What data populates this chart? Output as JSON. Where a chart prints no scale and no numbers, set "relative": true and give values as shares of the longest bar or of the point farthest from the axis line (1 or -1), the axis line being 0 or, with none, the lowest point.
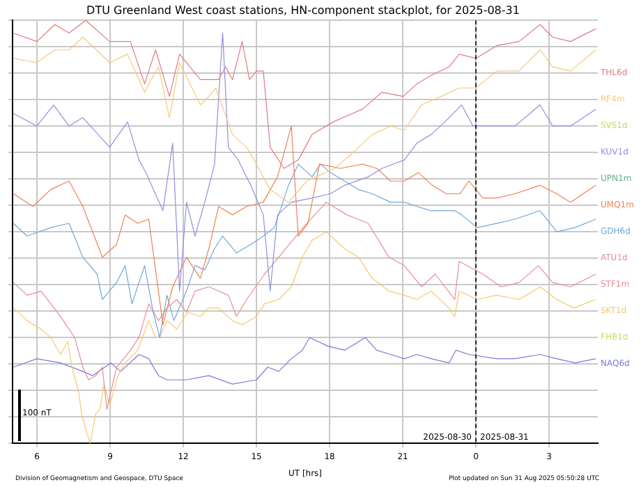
{
  "chart_data": {
    "type": "line",
    "title": "DTU Greenland West coast stations, HN-component stackplot, for 2025-08-31",
    "xlabel": "UT [hrs]",
    "relative": true,
    "grid": true,
    "legend": "right",
    "marker": "none",
    "line_style": "solid",
    "xlim": [
      "2025-08-30T05:00",
      "2025-08-31T05:00"
    ],
    "xticks": [
      {
        "value": "2025-08-30T06:00",
        "label": "6"
      },
      {
        "value": "2025-08-30T09:00",
        "label": "9"
      },
      {
        "value": "2025-08-30T12:00",
        "label": "12"
      },
      {
        "value": "2025-08-30T15:00",
        "label": "15"
      },
      {
        "value": "2025-08-30T18:00",
        "label": "18"
      },
      {
        "value": "2025-08-30T21:00",
        "label": "21"
      },
      {
        "value": "2025-08-31T00:00",
        "label": "0"
      },
      {
        "value": "2025-08-31T03:00",
        "label": "3"
      }
    ],
    "ref_lines": [
      {
        "axis": "x",
        "value": "2025-08-31T00:00",
        "color": "#000000",
        "line_style": "dashed"
      }
    ],
    "annotations": [
      "100 nT",
      "2025-08-30",
      "2025-08-31",
      "Division of Geomagnetism and Geospace, DTU Space",
      "Plot updated on Sun 31 Aug 2025 05:50:28 UTC"
    ],
    "series": [
      {
        "name": "THL6d",
        "color": "#e07a80",
        "x": [
          "2025-08-30T05:02",
          "2025-08-30T06:00",
          "2025-08-30T06:44",
          "2025-08-30T07:19",
          "2025-08-30T08:00",
          "2025-08-30T08:59",
          "2025-08-30T09:50",
          "2025-08-30T10:25",
          "2025-08-30T10:52",
          "2025-08-30T11:26",
          "2025-08-30T11:51",
          "2025-08-30T12:42",
          "2025-08-30T13:27",
          "2025-08-30T13:44",
          "2025-08-30T14:01",
          "2025-08-30T14:25",
          "2025-08-30T14:43",
          "2025-08-30T15:00",
          "2025-08-30T15:17",
          "2025-08-30T15:34",
          "2025-08-30T16:08",
          "2025-08-30T16:43",
          "2025-08-30T17:17",
          "2025-08-30T18:09",
          "2025-08-30T19:21",
          "2025-08-30T20:09",
          "2025-08-30T21:01",
          "2025-08-30T21:35",
          "2025-08-30T22:10",
          "2025-08-30T22:54",
          "2025-08-30T23:19",
          "2025-08-31T00:00",
          "2025-08-31T00:51",
          "2025-08-31T01:46",
          "2025-08-31T02:38",
          "2025-08-31T03:09",
          "2025-08-31T03:53",
          "2025-08-31T04:55"
        ],
        "values": [
          0.97,
          0.95,
          0.99,
          0.97,
          1,
          0.95,
          0.95,
          0.85,
          0.93,
          0.82,
          0.92,
          0.86,
          0.86,
          0.89,
          0.86,
          0.95,
          0.86,
          0.88,
          0.88,
          0.7,
          0.65,
          0.67,
          0.73,
          0.76,
          0.79,
          0.83,
          0.82,
          0.85,
          0.87,
          0.89,
          0.92,
          0.91,
          0.94,
          0.95,
          0.99,
          0.96,
          0.95,
          0.98
        ]
      },
      {
        "name": "RF4m",
        "color": "#f5c97a",
        "x": [
          "2025-08-30T05:02",
          "2025-08-30T06:00",
          "2025-08-30T06:44",
          "2025-08-30T07:19",
          "2025-08-30T07:53",
          "2025-08-30T08:59",
          "2025-08-30T09:43",
          "2025-08-30T10:25",
          "2025-08-30T10:59",
          "2025-08-30T11:26",
          "2025-08-30T11:51",
          "2025-08-30T12:42",
          "2025-08-30T13:03",
          "2025-08-30T13:20",
          "2025-08-30T14:01",
          "2025-08-30T14:36",
          "2025-08-30T15:00",
          "2025-08-30T15:34",
          "2025-08-30T16:19",
          "2025-08-30T17:04",
          "2025-08-30T18:13",
          "2025-08-30T19:01",
          "2025-08-30T19:45",
          "2025-08-30T20:30",
          "2025-08-30T21:04",
          "2025-08-30T21:46",
          "2025-08-30T22:34",
          "2025-08-30T23:19",
          "2025-08-31T00:00",
          "2025-08-31T00:51",
          "2025-08-31T01:46",
          "2025-08-31T02:38",
          "2025-08-31T03:09",
          "2025-08-31T03:53",
          "2025-08-31T04:55"
        ],
        "values": [
          0.91,
          0.9,
          0.93,
          0.93,
          0.96,
          0.9,
          0.92,
          0.83,
          0.89,
          0.77,
          0.9,
          0.8,
          0.82,
          0.84,
          0.73,
          0.7,
          0.66,
          0.6,
          0.57,
          0.62,
          0.65,
          0.69,
          0.73,
          0.75,
          0.74,
          0.8,
          0.82,
          0.84,
          0.84,
          0.88,
          0.88,
          0.93,
          0.89,
          0.88,
          0.93
        ]
      },
      {
        "name": "SVS1d",
        "color": "#c9d86b"
      },
      {
        "name": "KUV1d",
        "color": "#8f8fe0",
        "x": [
          "2025-08-30T05:02",
          "2025-08-30T06:00",
          "2025-08-30T06:41",
          "2025-08-30T07:19",
          "2025-08-30T07:53",
          "2025-08-30T08:59",
          "2025-08-30T09:43",
          "2025-08-30T10:11",
          "2025-08-30T10:28",
          "2025-08-30T11:10",
          "2025-08-30T11:34",
          "2025-08-30T11:51",
          "2025-08-30T12:08",
          "2025-08-30T12:29",
          "2025-08-30T12:53",
          "2025-08-30T13:17",
          "2025-08-30T13:37",
          "2025-08-30T13:51",
          "2025-08-30T14:15",
          "2025-08-30T14:46",
          "2025-08-30T15:17",
          "2025-08-30T15:34",
          "2025-08-30T15:52",
          "2025-08-30T16:26",
          "2025-08-30T17:17",
          "2025-08-30T18:02",
          "2025-08-30T18:37",
          "2025-08-30T19:35",
          "2025-08-30T20:09",
          "2025-08-30T21:04",
          "2025-08-30T21:35",
          "2025-08-30T22:10",
          "2025-08-30T22:44",
          "2025-08-30T23:25",
          "2025-08-30T23:53",
          "2025-08-31T00:51",
          "2025-08-31T01:36",
          "2025-08-31T02:38",
          "2025-08-31T03:09",
          "2025-08-31T03:53",
          "2025-08-31T04:55"
        ],
        "values": [
          0.78,
          0.75,
          0.8,
          0.75,
          0.77,
          0.7,
          0.76,
          0.67,
          0.64,
          0.55,
          0.71,
          0.36,
          0.57,
          0.49,
          0.57,
          0.66,
          0.97,
          0.7,
          0.67,
          0.61,
          0.54,
          0.36,
          0.54,
          0.57,
          0.58,
          0.59,
          0.61,
          0.63,
          0.65,
          0.67,
          0.71,
          0.73,
          0.76,
          0.8,
          0.75,
          0.75,
          0.75,
          0.8,
          0.75,
          0.75,
          0.79
        ]
      },
      {
        "name": "UPN1m",
        "color": "#5fb38a"
      },
      {
        "name": "UMQ1m",
        "color": "#f08050",
        "x": [
          "2025-08-30T05:02",
          "2025-08-30T05:50",
          "2025-08-30T06:34",
          "2025-08-30T07:19",
          "2025-08-30T07:53",
          "2025-08-30T08:17",
          "2025-08-30T08:41",
          "2025-08-30T09:16",
          "2025-08-30T09:37",
          "2025-08-30T10:08",
          "2025-08-30T10:35",
          "2025-08-30T10:59",
          "2025-08-30T11:10",
          "2025-08-30T11:34",
          "2025-08-30T12:08",
          "2025-08-30T12:42",
          "2025-08-30T13:03",
          "2025-08-30T13:27",
          "2025-08-30T14:01",
          "2025-08-30T14:36",
          "2025-08-30T15:17",
          "2025-08-30T15:52",
          "2025-08-30T16:26",
          "2025-08-30T16:43",
          "2025-08-30T17:07",
          "2025-08-30T17:35",
          "2025-08-30T18:26",
          "2025-08-30T19:21",
          "2025-08-30T19:56",
          "2025-08-30T20:30",
          "2025-08-30T21:04",
          "2025-08-30T21:39",
          "2025-08-30T22:13",
          "2025-08-30T22:47",
          "2025-08-30T23:21",
          "2025-08-30T23:43",
          "2025-08-31T00:17",
          "2025-08-31T00:51",
          "2025-08-31T01:36",
          "2025-08-31T02:38",
          "2025-08-31T03:19",
          "2025-08-31T03:53",
          "2025-08-31T04:55"
        ],
        "values": [
          0.59,
          0.56,
          0.6,
          0.62,
          0.56,
          0.5,
          0.44,
          0.47,
          0.54,
          0.52,
          0.53,
          0.36,
          0.28,
          0.37,
          0.44,
          0.39,
          0.46,
          0.56,
          0.54,
          0.56,
          0.57,
          0.63,
          0.75,
          0.49,
          0.52,
          0.66,
          0.65,
          0.66,
          0.65,
          0.62,
          0.62,
          0.64,
          0.61,
          0.59,
          0.59,
          0.62,
          0.58,
          0.58,
          0.59,
          0.61,
          0.59,
          0.57,
          0.61
        ]
      },
      {
        "name": "GDH6d",
        "color": "#6fa8d8",
        "x": [
          "2025-08-30T05:02",
          "2025-08-30T05:36",
          "2025-08-30T06:34",
          "2025-08-30T07:19",
          "2025-08-30T07:53",
          "2025-08-30T08:28",
          "2025-08-30T08:41",
          "2025-08-30T09:16",
          "2025-08-30T09:37",
          "2025-08-30T09:54",
          "2025-08-30T10:25",
          "2025-08-30T10:46",
          "2025-08-30T11:02",
          "2025-08-30T11:20",
          "2025-08-30T11:37",
          "2025-08-30T12:08",
          "2025-08-30T12:29",
          "2025-08-30T12:53",
          "2025-08-30T13:17",
          "2025-08-30T13:37",
          "2025-08-30T14:11",
          "2025-08-30T14:46",
          "2025-08-30T15:17",
          "2025-08-30T15:44",
          "2025-08-30T16:19",
          "2025-08-30T16:43",
          "2025-08-30T17:17",
          "2025-08-30T17:38",
          "2025-08-30T18:02",
          "2025-08-30T18:37",
          "2025-08-30T19:11",
          "2025-08-30T19:45",
          "2025-08-30T20:30",
          "2025-08-30T21:04",
          "2025-08-30T21:35",
          "2025-08-30T22:10",
          "2025-08-30T23:08",
          "2025-08-30T23:25",
          "2025-08-31T00:03",
          "2025-08-31T00:51",
          "2025-08-31T01:36",
          "2025-08-31T02:38",
          "2025-08-31T03:19",
          "2025-08-31T04:04",
          "2025-08-31T04:55"
        ],
        "values": [
          0.52,
          0.49,
          0.51,
          0.52,
          0.44,
          0.4,
          0.34,
          0.38,
          0.42,
          0.33,
          0.42,
          0.31,
          0.25,
          0.35,
          0.29,
          0.36,
          0.42,
          0.41,
          0.46,
          0.49,
          0.45,
          0.47,
          0.49,
          0.51,
          0.61,
          0.66,
          0.63,
          0.66,
          0.64,
          0.62,
          0.6,
          0.59,
          0.57,
          0.57,
          0.56,
          0.55,
          0.55,
          0.54,
          0.51,
          0.52,
          0.53,
          0.55,
          0.5,
          0.51,
          0.53
        ]
      },
      {
        "name": "ATU1d",
        "color": "#e0909a"
      },
      {
        "name": "STF1m",
        "color": "#e88c98",
        "x": [
          "2025-08-30T05:02",
          "2025-08-30T05:36",
          "2025-08-30T06:10",
          "2025-08-30T06:58",
          "2025-08-30T07:33",
          "2025-08-30T07:53",
          "2025-08-30T08:07",
          "2025-08-30T08:25",
          "2025-08-30T08:41",
          "2025-08-30T08:52",
          "2025-08-30T09:16",
          "2025-08-30T09:50",
          "2025-08-30T10:11",
          "2025-08-30T10:35",
          "2025-08-30T10:59",
          "2025-08-30T11:20",
          "2025-08-30T11:44",
          "2025-08-30T12:08",
          "2025-08-30T12:29",
          "2025-08-30T13:03",
          "2025-08-30T13:51",
          "2025-08-30T14:11",
          "2025-08-30T14:36",
          "2025-08-30T15:20",
          "2025-08-30T15:55",
          "2025-08-30T16:29",
          "2025-08-30T17:04",
          "2025-08-30T17:52",
          "2025-08-30T18:43",
          "2025-08-30T19:35",
          "2025-08-30T20:26",
          "2025-08-30T21:04",
          "2025-08-30T21:46",
          "2025-08-30T22:20",
          "2025-08-30T23:08",
          "2025-08-30T23:19",
          "2025-08-31T00:17",
          "2025-08-31T01:02",
          "2025-08-31T01:46",
          "2025-08-31T02:34",
          "2025-08-31T03:09",
          "2025-08-31T03:53",
          "2025-08-31T04:55"
        ],
        "values": [
          0.38,
          0.35,
          0.36,
          0.3,
          0.25,
          0.18,
          0.15,
          0.16,
          0.18,
          0.08,
          0.18,
          0.22,
          0.25,
          0.33,
          0.29,
          0.32,
          0.34,
          0.31,
          0.36,
          0.37,
          0.35,
          0.3,
          0.34,
          0.4,
          0.44,
          0.48,
          0.52,
          0.57,
          0.54,
          0.52,
          0.44,
          0.42,
          0.37,
          0.4,
          0.34,
          0.43,
          0.4,
          0.37,
          0.38,
          0.42,
          0.38,
          0.37,
          0.4
        ]
      },
      {
        "name": "SKT1d",
        "color": "#f7c86a",
        "x": [
          "2025-08-30T05:02",
          "2025-08-30T05:36",
          "2025-08-30T06:10",
          "2025-08-30T06:34",
          "2025-08-30T06:58",
          "2025-08-30T07:16",
          "2025-08-30T07:26",
          "2025-08-30T07:43",
          "2025-08-30T07:50",
          "2025-08-30T08:01",
          "2025-08-30T08:11",
          "2025-08-30T08:25",
          "2025-08-30T08:35",
          "2025-08-30T08:45",
          "2025-08-30T08:59",
          "2025-08-30T09:19",
          "2025-08-30T09:37",
          "2025-08-30T10:08",
          "2025-08-30T10:35",
          "2025-08-30T10:52",
          "2025-08-30T11:02",
          "2025-08-30T11:20",
          "2025-08-30T11:44",
          "2025-08-30T12:11",
          "2025-08-30T12:42",
          "2025-08-30T13:03",
          "2025-08-30T13:27",
          "2025-08-30T14:01",
          "2025-08-30T14:25",
          "2025-08-30T15:00",
          "2025-08-30T15:20",
          "2025-08-30T15:55",
          "2025-08-30T16:26",
          "2025-08-30T16:53",
          "2025-08-30T17:17",
          "2025-08-30T17:52",
          "2025-08-30T18:37",
          "2025-08-30T19:11",
          "2025-08-30T19:45",
          "2025-08-30T20:26",
          "2025-08-30T21:04",
          "2025-08-30T21:35",
          "2025-08-30T22:10",
          "2025-08-30T22:54",
          "2025-08-30T23:08",
          "2025-08-30T23:19",
          "2025-08-31T00:03",
          "2025-08-31T00:51",
          "2025-08-31T01:46",
          "2025-08-31T02:38",
          "2025-08-31T03:19",
          "2025-08-31T04:01",
          "2025-08-31T04:55"
        ],
        "values": [
          0.32,
          0.29,
          0.27,
          0.25,
          0.21,
          0.24,
          0.18,
          0.12,
          0.07,
          0.03,
          0,
          0.07,
          0.08,
          0.14,
          0.09,
          0.16,
          0.19,
          0.22,
          0.29,
          0.25,
          0.25,
          0.29,
          0.27,
          0.31,
          0.3,
          0.32,
          0.32,
          0.29,
          0.28,
          0.3,
          0.33,
          0.34,
          0.37,
          0.44,
          0.48,
          0.5,
          0.46,
          0.44,
          0.39,
          0.36,
          0.35,
          0.34,
          0.36,
          0.32,
          0.3,
          0.36,
          0.34,
          0.35,
          0.34,
          0.37,
          0.34,
          0.32,
          0.34
        ]
      },
      {
        "name": "FHB1d",
        "color": "#c8d870"
      },
      {
        "name": "NAQ6d",
        "color": "#7a7ad8",
        "x": [
          "2025-08-30T05:02",
          "2025-08-30T06:00",
          "2025-08-30T06:58",
          "2025-08-30T07:53",
          "2025-08-30T08:17",
          "2025-08-30T09:02",
          "2025-08-30T09:26",
          "2025-08-30T10:11",
          "2025-08-30T10:35",
          "2025-08-30T10:59",
          "2025-08-30T11:20",
          "2025-08-30T12:08",
          "2025-08-30T13:03",
          "2025-08-30T14:01",
          "2025-08-30T15:00",
          "2025-08-30T15:28",
          "2025-08-30T15:55",
          "2025-08-30T16:26",
          "2025-08-30T16:53",
          "2025-08-30T17:11",
          "2025-08-30T17:55",
          "2025-08-30T18:37",
          "2025-08-30T19:28",
          "2025-08-30T19:56",
          "2025-08-30T20:30",
          "2025-08-30T21:04",
          "2025-08-30T21:35",
          "2025-08-30T22:10",
          "2025-08-30T22:54",
          "2025-08-30T23:11",
          "2025-08-30T23:43",
          "2025-08-31T00:51",
          "2025-08-31T01:36",
          "2025-08-31T02:38",
          "2025-08-31T03:19",
          "2025-08-31T04:04",
          "2025-08-31T04:55"
        ],
        "values": [
          0.18,
          0.2,
          0.19,
          0.17,
          0.16,
          0.19,
          0.17,
          0.21,
          0.2,
          0.16,
          0.15,
          0.15,
          0.16,
          0.14,
          0.15,
          0.18,
          0.17,
          0.2,
          0.22,
          0.25,
          0.23,
          0.22,
          0.25,
          0.22,
          0.21,
          0.2,
          0.21,
          0.2,
          0.19,
          0.22,
          0.21,
          0.2,
          0.2,
          0.21,
          0.2,
          0.19,
          0.2
        ]
      }
    ]
  }
}
